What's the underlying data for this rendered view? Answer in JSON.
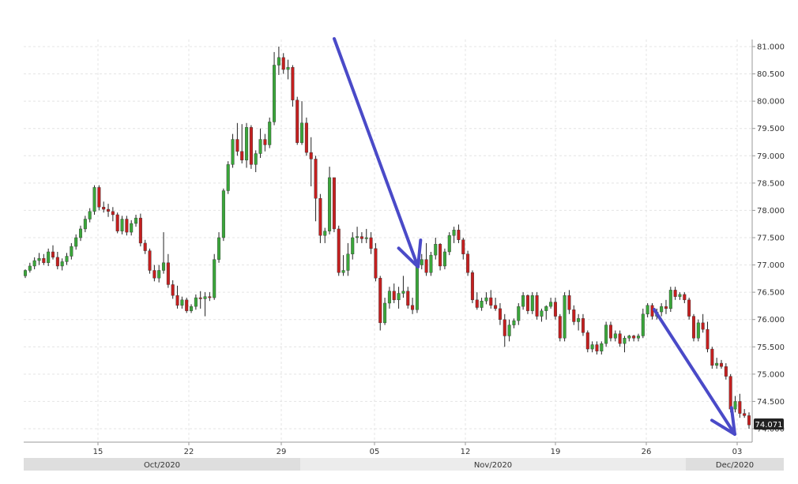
{
  "chart_data": {
    "type": "candlestick",
    "title": "",
    "xlabel": "",
    "ylabel": "",
    "ylim": [
      73.9,
      81.05
    ],
    "y_ticks": [
      "81.000",
      "80.500",
      "80.000",
      "79.500",
      "79.000",
      "78.500",
      "78.000",
      "77.500",
      "77.000",
      "76.500",
      "76.000",
      "75.500",
      "75.000",
      "74.500",
      "74.000"
    ],
    "x_ticks": [
      "15",
      "22",
      "29",
      "05",
      "12",
      "19",
      "26",
      "03"
    ],
    "months": [
      "Oct/2020",
      "Nov/2020",
      "Dec/2020"
    ],
    "last_price": "74.071",
    "grid": true,
    "colors": {
      "up": "#3aa63a",
      "down": "#c41f1f",
      "trend_arrow": "#4a4ac8",
      "grid": "#e4e4e4",
      "axis": "#999999",
      "price_tag_bg": "#222222"
    },
    "ohlc": [
      [
        76.8,
        76.92,
        76.76,
        76.9
      ],
      [
        76.9,
        77.04,
        76.86,
        76.98
      ],
      [
        76.98,
        77.14,
        76.92,
        77.08
      ],
      [
        77.08,
        77.22,
        77.0,
        77.12
      ],
      [
        77.12,
        77.2,
        77.0,
        77.04
      ],
      [
        77.04,
        77.3,
        76.98,
        77.24
      ],
      [
        77.24,
        77.36,
        77.1,
        77.14
      ],
      [
        77.14,
        77.24,
        76.92,
        76.98
      ],
      [
        76.98,
        77.12,
        76.9,
        77.06
      ],
      [
        77.06,
        77.22,
        77.0,
        77.16
      ],
      [
        77.16,
        77.4,
        77.1,
        77.34
      ],
      [
        77.34,
        77.56,
        77.28,
        77.5
      ],
      [
        77.5,
        77.72,
        77.44,
        77.66
      ],
      [
        77.66,
        77.9,
        77.6,
        77.84
      ],
      [
        77.84,
        78.04,
        77.78,
        77.98
      ],
      [
        77.98,
        78.46,
        77.92,
        78.42
      ],
      [
        78.42,
        78.46,
        78.0,
        78.06
      ],
      [
        78.06,
        78.16,
        77.96,
        78.02
      ],
      [
        78.02,
        78.12,
        77.88,
        77.98
      ],
      [
        77.98,
        78.06,
        77.8,
        77.92
      ],
      [
        77.92,
        77.96,
        77.58,
        77.62
      ],
      [
        77.62,
        77.9,
        77.56,
        77.84
      ],
      [
        77.84,
        77.9,
        77.54,
        77.6
      ],
      [
        77.6,
        77.82,
        77.54,
        77.76
      ],
      [
        77.76,
        77.92,
        77.7,
        77.86
      ],
      [
        77.86,
        77.94,
        77.34,
        77.4
      ],
      [
        77.4,
        77.46,
        77.2,
        77.26
      ],
      [
        77.26,
        77.3,
        76.84,
        76.9
      ],
      [
        76.9,
        77.0,
        76.7,
        76.76
      ],
      [
        76.76,
        77.0,
        76.68,
        76.9
      ],
      [
        76.9,
        77.6,
        76.84,
        77.04
      ],
      [
        77.04,
        77.2,
        76.58,
        76.64
      ],
      [
        76.64,
        76.72,
        76.38,
        76.44
      ],
      [
        76.44,
        76.62,
        76.2,
        76.26
      ],
      [
        76.26,
        76.42,
        76.2,
        76.36
      ],
      [
        76.36,
        76.4,
        76.12,
        76.16
      ],
      [
        76.16,
        76.28,
        76.12,
        76.24
      ],
      [
        76.24,
        76.46,
        76.18,
        76.4
      ],
      [
        76.4,
        76.52,
        76.2,
        76.38
      ],
      [
        76.38,
        76.5,
        76.06,
        76.42
      ],
      [
        76.42,
        76.5,
        76.34,
        76.4
      ],
      [
        76.4,
        77.2,
        76.36,
        77.1
      ],
      [
        77.1,
        77.6,
        77.04,
        77.5
      ],
      [
        77.5,
        78.4,
        77.44,
        78.36
      ],
      [
        78.36,
        78.9,
        78.3,
        78.84
      ],
      [
        78.84,
        79.4,
        78.78,
        79.3
      ],
      [
        79.3,
        79.6,
        79.0,
        79.08
      ],
      [
        79.08,
        79.58,
        78.86,
        78.92
      ],
      [
        78.92,
        79.6,
        78.78,
        79.52
      ],
      [
        79.52,
        79.56,
        78.76,
        78.84
      ],
      [
        78.84,
        79.1,
        78.7,
        79.04
      ],
      [
        79.04,
        79.5,
        78.96,
        79.3
      ],
      [
        79.3,
        79.4,
        79.08,
        79.2
      ],
      [
        79.2,
        79.7,
        79.14,
        79.62
      ],
      [
        79.62,
        80.9,
        79.56,
        80.66
      ],
      [
        80.66,
        81.0,
        80.48,
        80.8
      ],
      [
        80.8,
        80.88,
        80.5,
        80.58
      ],
      [
        80.58,
        80.76,
        80.4,
        80.62
      ],
      [
        80.62,
        80.66,
        79.9,
        80.02
      ],
      [
        80.02,
        80.08,
        79.2,
        79.24
      ],
      [
        79.24,
        80.0,
        79.2,
        79.6
      ],
      [
        79.6,
        79.7,
        79.0,
        79.06
      ],
      [
        79.06,
        79.34,
        78.44,
        78.94
      ],
      [
        78.94,
        79.0,
        77.8,
        78.22
      ],
      [
        78.22,
        78.3,
        77.4,
        77.54
      ],
      [
        77.54,
        77.68,
        77.4,
        77.62
      ],
      [
        77.62,
        78.8,
        77.56,
        78.6
      ],
      [
        78.6,
        78.6,
        77.6,
        77.66
      ],
      [
        77.66,
        77.72,
        76.8,
        76.86
      ],
      [
        76.86,
        77.18,
        76.8,
        76.9
      ],
      [
        76.9,
        77.4,
        76.8,
        77.2
      ],
      [
        77.2,
        77.6,
        77.1,
        77.5
      ],
      [
        77.5,
        77.7,
        77.4,
        77.52
      ],
      [
        77.52,
        77.6,
        77.4,
        77.48
      ],
      [
        77.48,
        77.66,
        77.4,
        77.5
      ],
      [
        77.5,
        77.6,
        77.2,
        77.3
      ],
      [
        77.3,
        77.4,
        76.7,
        76.76
      ],
      [
        76.76,
        76.8,
        75.8,
        75.94
      ],
      [
        75.94,
        76.4,
        75.9,
        76.3
      ],
      [
        76.3,
        76.6,
        76.2,
        76.52
      ],
      [
        76.52,
        76.66,
        76.3,
        76.36
      ],
      [
        76.36,
        76.6,
        76.2,
        76.48
      ],
      [
        76.48,
        76.8,
        76.4,
        76.52
      ],
      [
        76.52,
        76.6,
        76.2,
        76.26
      ],
      [
        76.26,
        76.4,
        76.1,
        76.18
      ],
      [
        76.18,
        77.1,
        76.12,
        77.0
      ],
      [
        77.0,
        77.2,
        76.92,
        77.1
      ],
      [
        77.1,
        77.4,
        76.8,
        76.86
      ],
      [
        76.86,
        77.24,
        76.8,
        77.18
      ],
      [
        77.18,
        77.5,
        77.1,
        77.38
      ],
      [
        77.38,
        77.4,
        76.9,
        76.98
      ],
      [
        76.98,
        77.3,
        76.92,
        77.24
      ],
      [
        77.24,
        77.6,
        77.18,
        77.54
      ],
      [
        77.54,
        77.7,
        77.4,
        77.64
      ],
      [
        77.64,
        77.74,
        77.4,
        77.46
      ],
      [
        77.46,
        77.5,
        77.1,
        77.2
      ],
      [
        77.2,
        77.26,
        76.8,
        76.86
      ],
      [
        76.86,
        76.9,
        76.3,
        76.36
      ],
      [
        76.36,
        76.5,
        76.18,
        76.22
      ],
      [
        76.22,
        76.4,
        76.16,
        76.34
      ],
      [
        76.34,
        76.5,
        76.28,
        76.4
      ],
      [
        76.4,
        76.54,
        76.2,
        76.26
      ],
      [
        76.26,
        76.4,
        76.16,
        76.2
      ],
      [
        76.2,
        76.3,
        75.9,
        76.0
      ],
      [
        76.0,
        76.1,
        75.5,
        75.7
      ],
      [
        75.7,
        76.0,
        75.6,
        75.9
      ],
      [
        75.9,
        76.02,
        75.84,
        75.98
      ],
      [
        75.98,
        76.3,
        75.9,
        76.24
      ],
      [
        76.24,
        76.5,
        76.18,
        76.44
      ],
      [
        76.44,
        76.46,
        76.1,
        76.16
      ],
      [
        76.16,
        76.5,
        76.1,
        76.44
      ],
      [
        76.44,
        76.5,
        76.0,
        76.06
      ],
      [
        76.06,
        76.2,
        75.96,
        76.16
      ],
      [
        76.16,
        76.26,
        76.0,
        76.24
      ],
      [
        76.24,
        76.4,
        76.2,
        76.32
      ],
      [
        76.32,
        76.4,
        76.0,
        76.06
      ],
      [
        76.06,
        76.1,
        75.6,
        75.66
      ],
      [
        75.66,
        76.5,
        75.6,
        76.44
      ],
      [
        76.44,
        76.54,
        76.1,
        76.18
      ],
      [
        76.18,
        76.26,
        75.9,
        75.96
      ],
      [
        75.96,
        76.1,
        75.8,
        76.02
      ],
      [
        76.02,
        76.1,
        75.7,
        75.76
      ],
      [
        75.76,
        75.8,
        75.4,
        75.46
      ],
      [
        75.46,
        75.6,
        75.4,
        75.54
      ],
      [
        75.54,
        75.6,
        75.36,
        75.42
      ],
      [
        75.42,
        75.6,
        75.36,
        75.56
      ],
      [
        75.56,
        75.96,
        75.5,
        75.9
      ],
      [
        75.9,
        75.96,
        75.6,
        75.66
      ],
      [
        75.66,
        75.8,
        75.6,
        75.74
      ],
      [
        75.74,
        75.8,
        75.5,
        75.56
      ],
      [
        75.56,
        75.7,
        75.4,
        75.66
      ],
      [
        75.66,
        75.72,
        75.6,
        75.7
      ],
      [
        75.7,
        75.72,
        75.6,
        75.66
      ],
      [
        75.66,
        75.74,
        75.6,
        75.7
      ],
      [
        75.7,
        76.2,
        75.66,
        76.1
      ],
      [
        76.1,
        76.3,
        76.04,
        76.26
      ],
      [
        76.26,
        76.3,
        76.0,
        76.06
      ],
      [
        76.06,
        76.2,
        76.0,
        76.14
      ],
      [
        76.14,
        76.3,
        76.06,
        76.24
      ],
      [
        76.24,
        76.36,
        76.1,
        76.2
      ],
      [
        76.2,
        76.6,
        76.14,
        76.54
      ],
      [
        76.54,
        76.6,
        76.36,
        76.42
      ],
      [
        76.42,
        76.5,
        76.36,
        76.46
      ],
      [
        76.46,
        76.5,
        76.3,
        76.36
      ],
      [
        76.36,
        76.4,
        76.0,
        76.06
      ],
      [
        76.06,
        76.1,
        75.6,
        75.66
      ],
      [
        75.66,
        76.0,
        75.6,
        75.94
      ],
      [
        75.94,
        76.1,
        75.76,
        75.82
      ],
      [
        75.82,
        75.96,
        75.4,
        75.46
      ],
      [
        75.46,
        75.5,
        75.1,
        75.16
      ],
      [
        75.16,
        75.3,
        75.1,
        75.2
      ],
      [
        75.2,
        75.26,
        75.1,
        75.14
      ],
      [
        75.14,
        75.2,
        74.9,
        74.96
      ],
      [
        74.96,
        75.0,
        74.3,
        74.36
      ],
      [
        74.36,
        74.6,
        74.3,
        74.5
      ],
      [
        74.5,
        74.64,
        74.2,
        74.28
      ],
      [
        74.28,
        74.36,
        74.2,
        74.24
      ],
      [
        74.24,
        74.3,
        74.0,
        74.07
      ]
    ]
  }
}
